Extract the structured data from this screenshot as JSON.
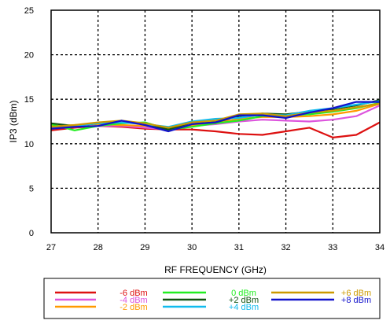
{
  "chart_data": {
    "type": "line",
    "xlabel": "RF FREQUENCY (GHz)",
    "ylabel": "IP3 (dBm)",
    "xlim": [
      27,
      34
    ],
    "ylim": [
      0,
      25
    ],
    "x_ticks": [
      "27",
      "28",
      "29",
      "30",
      "31",
      "32",
      "33",
      "34"
    ],
    "y_ticks": [
      "0",
      "5",
      "10",
      "15",
      "20",
      "25"
    ],
    "grid": true,
    "legend_position": "bottom",
    "x": [
      27,
      27.5,
      28,
      28.5,
      29,
      29.5,
      30,
      30.5,
      31,
      31.5,
      32,
      32.5,
      33,
      33.5,
      34
    ],
    "series": [
      {
        "name": "-6 dBm",
        "color": "#dd1111",
        "values": [
          11.5,
          11.8,
          12.0,
          11.9,
          11.7,
          11.6,
          11.6,
          11.4,
          11.1,
          11.0,
          11.4,
          11.8,
          10.7,
          11.0,
          12.4
        ]
      },
      {
        "name": "-4 dBm",
        "color": "#dd55dd",
        "values": [
          11.8,
          11.9,
          12.0,
          12.0,
          11.8,
          11.6,
          12.0,
          12.2,
          12.5,
          12.7,
          12.6,
          12.5,
          12.7,
          13.1,
          14.3
        ]
      },
      {
        "name": "-2 dBm",
        "color": "#ff9900",
        "values": [
          12.0,
          12.1,
          12.2,
          12.1,
          12.0,
          11.8,
          12.1,
          12.3,
          12.8,
          13.0,
          13.0,
          13.1,
          13.3,
          13.7,
          14.5
        ]
      },
      {
        "name": "0 dBm",
        "color": "#22ee22",
        "values": [
          12.2,
          11.5,
          12.0,
          12.3,
          12.4,
          11.6,
          11.9,
          12.3,
          12.6,
          13.1,
          13.2,
          13.3,
          13.6,
          14.0,
          14.6
        ]
      },
      {
        "name": "+2 dBm",
        "color": "#115511",
        "values": [
          12.3,
          12.0,
          12.3,
          12.5,
          12.2,
          11.6,
          12.4,
          12.4,
          13.1,
          13.4,
          13.3,
          13.6,
          13.9,
          14.3,
          14.9
        ]
      },
      {
        "name": "+4 dBm",
        "color": "#11bbee",
        "values": [
          11.9,
          12.0,
          12.3,
          12.4,
          12.2,
          11.9,
          12.5,
          12.8,
          12.9,
          13.3,
          13.2,
          13.7,
          14.0,
          14.4,
          14.8
        ]
      },
      {
        "name": "+6 dBm",
        "color": "#cc9900",
        "values": [
          11.9,
          12.1,
          12.4,
          12.6,
          12.3,
          11.8,
          12.4,
          12.6,
          13.3,
          13.4,
          13.1,
          13.5,
          13.7,
          14.1,
          14.5
        ]
      },
      {
        "name": "+8 dBm",
        "color": "#1111cc",
        "values": [
          11.7,
          11.9,
          12.0,
          12.6,
          12.1,
          11.4,
          12.2,
          12.4,
          13.2,
          13.2,
          12.9,
          13.5,
          14.0,
          14.7,
          14.7
        ]
      }
    ]
  }
}
